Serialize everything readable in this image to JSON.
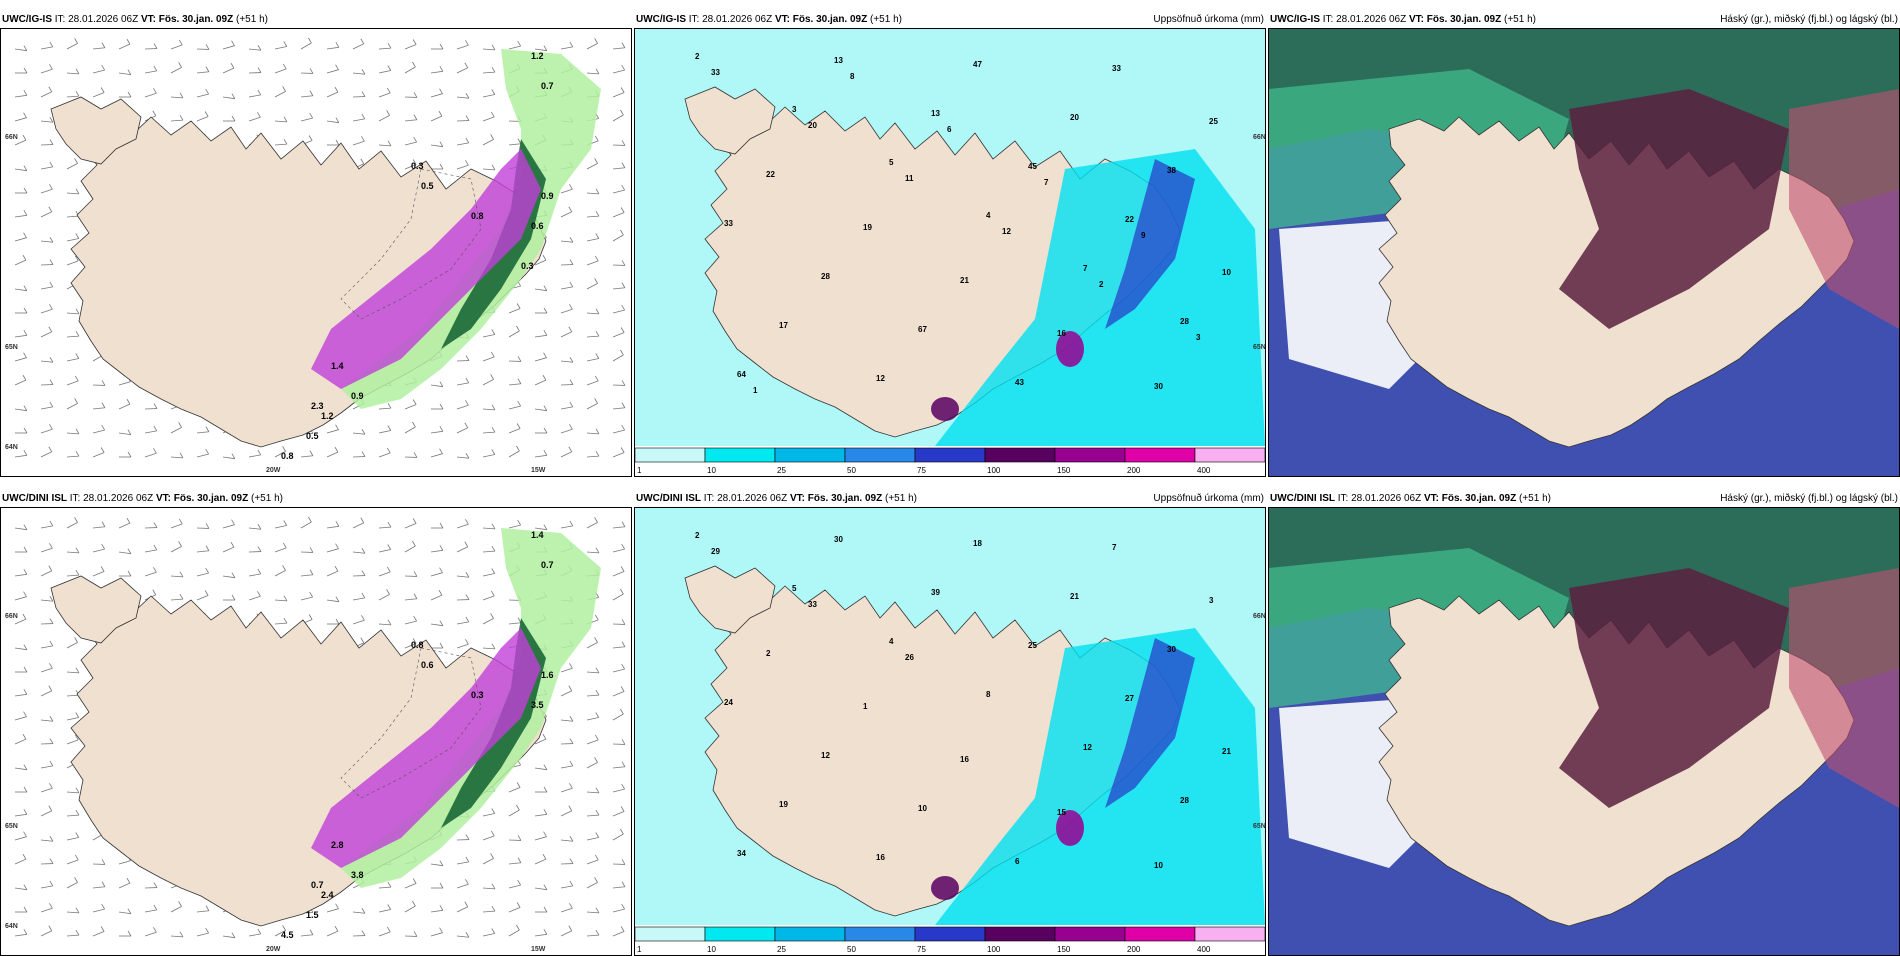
{
  "panels": [
    {
      "model": "UWC/IG-IS",
      "it_label": "IT:",
      "it": "28.01.2026 06Z",
      "vt_label": "VT:",
      "vt": "Fös. 30.jan. 09Z",
      "lead": "(+51 h)",
      "title": "",
      "lat_labels": [
        "66N",
        "65N",
        "64N"
      ],
      "lon_labels": [
        "20W",
        "15W"
      ],
      "values": [
        "0.7",
        "1.2",
        "0.3",
        "0.5",
        "0.8",
        "0.9",
        "0.6",
        "1.4",
        "0.9",
        "1.2",
        "2.3",
        "0.5",
        "0.8",
        "0.3"
      ]
    },
    {
      "model": "UWC/IG-IS",
      "it_label": "IT:",
      "it": "28.01.2026 06Z",
      "vt_label": "VT:",
      "vt": "Fös. 30.jan. 09Z",
      "lead": "(+51 h)",
      "title": "Uppsöfnuð úrkoma (mm)",
      "lat_labels": [
        "66N",
        "65N"
      ],
      "values": [
        "2",
        "3",
        "5",
        "4",
        "7",
        "28",
        "64",
        "13",
        "13",
        "45",
        "22",
        "10",
        "17",
        "12",
        "47",
        "20",
        "38",
        "33",
        "28",
        "67",
        "43",
        "33",
        "25",
        "22",
        "19",
        "21",
        "16",
        "30",
        "33",
        "20",
        "11",
        "12",
        "2",
        "3",
        "1",
        "8",
        "6",
        "7",
        "9"
      ]
    },
    {
      "model": "UWC/IG-IS",
      "it_label": "IT:",
      "it": "28.01.2026 06Z",
      "vt_label": "VT:",
      "vt": "Fös. 30.jan. 09Z",
      "lead": "(+51 h)",
      "title": "Háský (gr.), miðský (fj.bl.) og lágský (bl.)"
    },
    {
      "model": "UWC/DINI ISL",
      "it_label": "IT:",
      "it": "28.01.2026 06Z",
      "vt_label": "VT:",
      "vt": "Fös. 30.jan. 09Z",
      "lead": "(+51 h)",
      "title": "",
      "lat_labels": [
        "66N",
        "65N",
        "64N"
      ],
      "lon_labels": [
        "20W",
        "15W"
      ],
      "values": [
        "0.7",
        "1.4",
        "0.8",
        "0.6",
        "0.3",
        "1.6",
        "3.5",
        "2.8",
        "3.8",
        "2.4",
        "0.7",
        "1.5",
        "4.5"
      ]
    },
    {
      "model": "UWC/DINI ISL",
      "it_label": "IT:",
      "it": "28.01.2026 06Z",
      "vt_label": "VT:",
      "vt": "Fös. 30.jan. 09Z",
      "lead": "(+51 h)",
      "title": "Uppsöfnuð úrkoma (mm)",
      "lat_labels": [
        "66N",
        "65N"
      ],
      "values": [
        "2",
        "5",
        "4",
        "8",
        "12",
        "28",
        "34",
        "30",
        "39",
        "25",
        "27",
        "21",
        "19",
        "16",
        "18",
        "21",
        "30",
        "24",
        "12",
        "10",
        "6",
        "7",
        "3",
        "2",
        "1",
        "16",
        "15",
        "10",
        "29",
        "33",
        "26"
      ]
    },
    {
      "model": "UWC/DINI ISL",
      "it_label": "IT:",
      "it": "28.01.2026 06Z",
      "vt_label": "VT:",
      "vt": "Fös. 30.jan. 09Z",
      "lead": "(+51 h)",
      "title": "Háský (gr.), miðský (fj.bl.) og lágský (bl.)"
    }
  ],
  "colorbar": {
    "ticks": [
      "1",
      "10",
      "25",
      "50",
      "75",
      "100",
      "150",
      "200",
      "400"
    ],
    "colors": [
      "#c8f8f8",
      "#00e8f0",
      "#00b8e8",
      "#2888e8",
      "#2838c8",
      "#580060",
      "#980090",
      "#e000a8",
      "#f8b0f0"
    ]
  },
  "colors": {
    "land": "#efe0d0",
    "sea": "#ffffff",
    "precip_light": "#b0f8f8",
    "precip_mid": "#00e0f0",
    "snow_purple": "#c040d8",
    "green_dark": "#106030",
    "green_light": "#b0f0a0",
    "cloud_high": "#2a7050",
    "cloud_mid": "#3030a0",
    "cloud_low": "#5a2040"
  }
}
